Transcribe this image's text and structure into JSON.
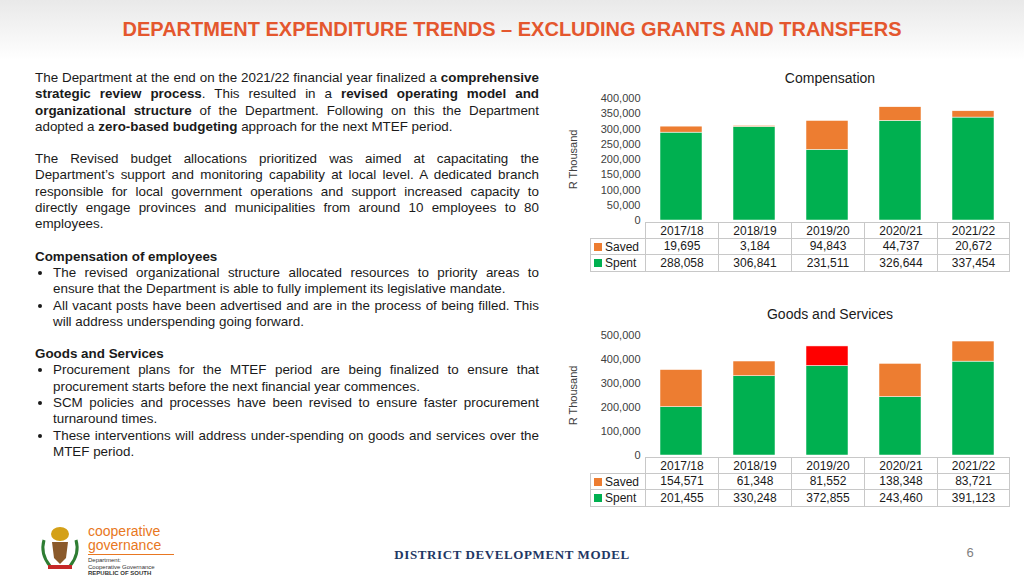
{
  "header": {
    "title": "DEPARTMENT EXPENDITURE TRENDS – EXCLUDING GRANTS AND TRANSFERS"
  },
  "text": {
    "paragraphs": [
      [
        {
          "text": "The Department at the end on the 2021/22 financial year finalized a ",
          "bold": false
        },
        {
          "text": "comprehensive strategic review process",
          "bold": true
        },
        {
          "text": ".  This resulted in a ",
          "bold": false
        },
        {
          "text": "revised operating model and organizational structure",
          "bold": true
        },
        {
          "text": " of the Department. Following on this the Department adopted a ",
          "bold": false
        },
        {
          "text": "zero-based budgeting",
          "bold": true
        },
        {
          "text": " approach for the next MTEF period.",
          "bold": false
        }
      ],
      [
        {
          "text": "The Revised budget allocations prioritized was aimed at capacitating the Department’s support and monitoring capability at local level.  A dedicated branch responsible for local government operations and support increased capacity to directly engage provinces and municipalities from around 10 employees to 80 employees.",
          "bold": false
        }
      ]
    ],
    "sections": [
      {
        "heading": "Compensation of employees",
        "bullets": [
          "The revised organizational structure allocated resources to priority areas to ensure that the Department is able to fully implement its legislative mandate.",
          "All vacant posts have been advertised and are in the process of being filled.  This will address underspending going forward."
        ]
      },
      {
        "heading": "Goods and Services",
        "bullets": [
          "Procurement plans for the MTEF period are being finalized to ensure that procurement starts before the next financial year commences.",
          "SCM policies and processes have been revised to ensure faster procurement turnaround times.",
          "These interventions will address under-spending on goods and services over the MTEF period."
        ]
      }
    ]
  },
  "chart_data": [
    {
      "type": "bar",
      "stacked": true,
      "title": "Compensation",
      "y_label": "R Thousand",
      "categories": [
        "2017/18",
        "2018/19",
        "2019/20",
        "2020/21",
        "2021/22"
      ],
      "ylim": [
        0,
        400000
      ],
      "yticks": [
        0,
        {
          "value": 50000,
          "label": "50,000"
        },
        {
          "value": 100000,
          "label": "100,000"
        },
        {
          "value": 150000,
          "label": "150,000"
        },
        {
          "value": 200000,
          "label": "200,000"
        },
        {
          "value": 250000,
          "label": "250,000"
        },
        {
          "value": 300000,
          "label": "300,000"
        },
        {
          "value": 350000,
          "label": "350,000"
        },
        {
          "value": 400000,
          "label": "400,000"
        }
      ],
      "grid": false,
      "series": [
        {
          "name": "Saved",
          "color": "#ed7d31",
          "values": [
            19695,
            3184,
            94843,
            44737,
            20672
          ],
          "value_labels": [
            "19,695",
            "3,184",
            "94,843",
            "44,737",
            "20,672"
          ]
        },
        {
          "name": "Spent",
          "color": "#00b050",
          "values": [
            288058,
            306841,
            231511,
            326644,
            337454
          ],
          "value_labels": [
            "288,058",
            "306,841",
            "231,511",
            "326,644",
            "337,454"
          ]
        }
      ]
    },
    {
      "type": "bar",
      "stacked": true,
      "title": "Goods and Services",
      "y_label": "R Thousand",
      "categories": [
        "2017/18",
        "2018/19",
        "2019/20",
        "2020/21",
        "2021/22"
      ],
      "ylim": [
        0,
        500000
      ],
      "yticks": [
        0,
        {
          "value": 100000,
          "label": "100,000"
        },
        {
          "value": 200000,
          "label": "200,000"
        },
        {
          "value": 300000,
          "label": "300,000"
        },
        {
          "value": 400000,
          "label": "400,000"
        },
        {
          "value": 500000,
          "label": "500,000"
        }
      ],
      "grid": false,
      "series": [
        {
          "name": "Saved",
          "color": "#ed7d31",
          "colors": [
            "#ed7d31",
            "#ed7d31",
            "#ff0000",
            "#ed7d31",
            "#ed7d31"
          ],
          "values": [
            154571,
            61348,
            81552,
            138348,
            83721
          ],
          "value_labels": [
            "154,571",
            "61,348",
            "81,552",
            "138,348",
            "83,721"
          ]
        },
        {
          "name": "Spent",
          "color": "#00b050",
          "values": [
            201455,
            330248,
            372855,
            243460,
            391123
          ],
          "value_labels": [
            "201,455",
            "330,248",
            "372,855",
            "243,460",
            "391,123"
          ]
        }
      ]
    }
  ],
  "footer": {
    "logo": {
      "name": [
        "cooperative",
        "governance"
      ],
      "department": [
        "Department:",
        "Cooperative Governance",
        "REPUBLIC OF SOUTH AFRICA"
      ]
    },
    "center": "DISTRICT DEVELOPMENT MODEL",
    "page": 6
  }
}
